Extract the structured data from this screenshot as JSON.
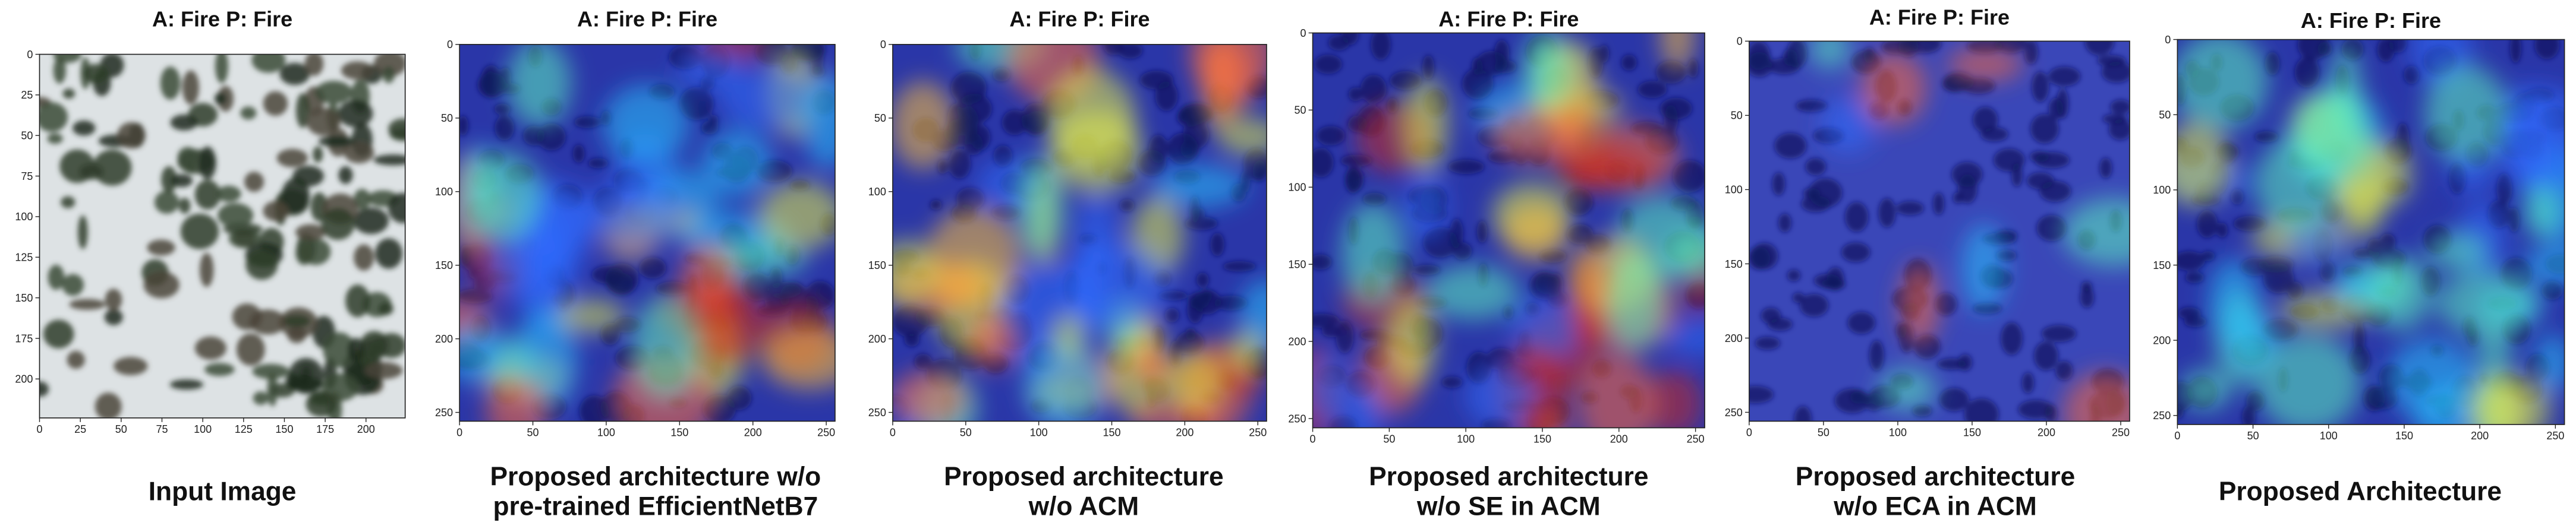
{
  "panels": [
    {
      "title": "A: Fire P: Fire",
      "caption": [
        "Input Image"
      ],
      "xlim": [
        0,
        224
      ],
      "ylim": [
        0,
        224
      ],
      "xticks": [
        0,
        25,
        50,
        75,
        100,
        125,
        150,
        175,
        200
      ],
      "yticks": [
        0,
        25,
        50,
        75,
        100,
        125,
        150,
        175,
        200
      ]
    },
    {
      "title": "A: Fire P: Fire",
      "caption": [
        "Proposed architecture w/o",
        "pre-trained EfficientNetB7"
      ],
      "xlim": [
        0,
        256
      ],
      "ylim": [
        0,
        256
      ],
      "xticks": [
        0,
        50,
        100,
        150,
        200,
        250
      ],
      "yticks": [
        0,
        50,
        100,
        150,
        200,
        250
      ]
    },
    {
      "title": "A: Fire P: Fire",
      "caption": [
        "Proposed architecture",
        "w/o ACM"
      ],
      "xlim": [
        0,
        256
      ],
      "ylim": [
        0,
        256
      ],
      "xticks": [
        0,
        50,
        100,
        150,
        200,
        250
      ],
      "yticks": [
        0,
        50,
        100,
        150,
        200,
        250
      ]
    },
    {
      "title": "A: Fire P: Fire",
      "caption": [
        "Proposed architecture",
        "w/o SE in ACM"
      ],
      "xlim": [
        0,
        256
      ],
      "ylim": [
        0,
        256
      ],
      "xticks": [
        0,
        50,
        100,
        150,
        200,
        250
      ],
      "yticks": [
        0,
        50,
        100,
        150,
        200,
        250
      ]
    },
    {
      "title": "A: Fire P: Fire",
      "caption": [
        "Proposed architecture",
        "w/o ECA in ACM"
      ],
      "xlim": [
        0,
        256
      ],
      "ylim": [
        0,
        256
      ],
      "xticks": [
        0,
        50,
        100,
        150,
        200,
        250
      ],
      "yticks": [
        0,
        50,
        100,
        150,
        200,
        250
      ]
    },
    {
      "title": "A: Fire P: Fire",
      "caption": [
        "Proposed Architecture"
      ],
      "xlim": [
        0,
        256
      ],
      "ylim": [
        0,
        256
      ],
      "xticks": [
        0,
        50,
        100,
        150,
        200,
        250
      ],
      "yticks": [
        0,
        50,
        100,
        150,
        200,
        250
      ]
    }
  ]
}
